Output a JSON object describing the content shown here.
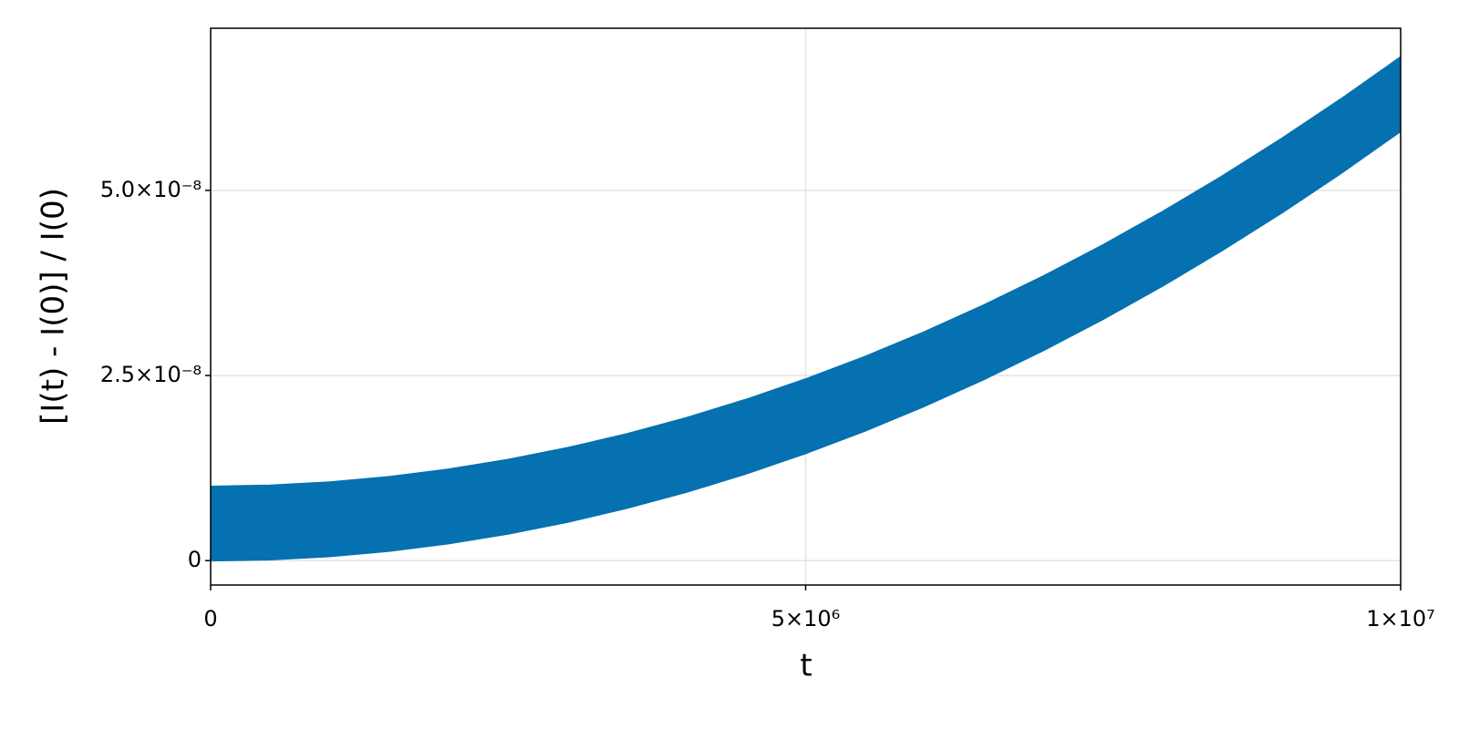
{
  "chart_data": {
    "type": "band",
    "xlabel": "t",
    "ylabel": "[I(t) - I(0)] / I(0)",
    "color": "#0571b0",
    "x": [
      0,
      500000,
      1000000,
      1500000,
      2000000,
      2500000,
      3000000,
      3500000,
      4000000,
      4500000,
      5000000,
      5500000,
      6000000,
      6500000,
      7000000,
      7500000,
      8000000,
      8500000,
      9000000,
      9500000,
      10000000
    ],
    "lower": [
      0,
      1.45e-10,
      5.8e-10,
      1.305e-09,
      2.32e-09,
      3.625e-09,
      5.22e-09,
      7.105e-09,
      9.28e-09,
      1.1745e-08,
      1.45e-08,
      1.7545e-08,
      2.088e-08,
      2.4505e-08,
      2.842e-08,
      3.2625e-08,
      3.712e-08,
      4.1905e-08,
      4.698e-08,
      5.2345e-08,
      5.8e-08
    ],
    "upper": [
      1e-08,
      1.0145e-08,
      1.058e-08,
      1.1305e-08,
      1.232e-08,
      1.3625e-08,
      1.522e-08,
      1.7105e-08,
      1.928e-08,
      2.1745e-08,
      2.45e-08,
      2.7545e-08,
      3.088e-08,
      3.4505e-08,
      3.842e-08,
      4.2625e-08,
      4.712e-08,
      5.1905e-08,
      5.698e-08,
      6.2345e-08,
      6.8e-08
    ],
    "xlim": [
      0,
      10000000
    ],
    "ylim": [
      -3.3e-09,
      7.19e-08
    ],
    "xticks": [
      0,
      {
        "value": 5000000,
        "label": "5×10⁶"
      },
      {
        "value": 10000000,
        "label": "1×10⁷"
      }
    ],
    "yticks": [
      0,
      {
        "value": 2.5e-08,
        "label": "2.5×10⁻⁸"
      },
      {
        "value": 5e-08,
        "label": "5.0×10⁻⁸"
      }
    ],
    "grid": true
  }
}
